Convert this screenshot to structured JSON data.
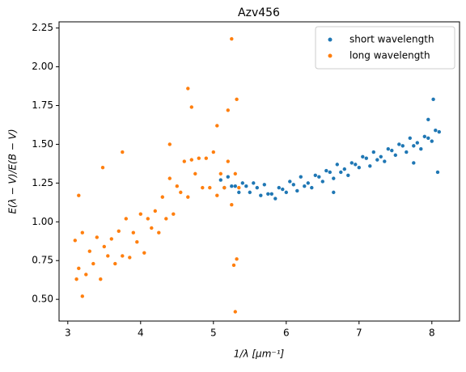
{
  "chart_data": {
    "type": "scatter",
    "title": "Azv456",
    "x_label": "1/λ [μm⁻¹]",
    "y_label": "E(λ − V)/E(B − V)",
    "xlim": [
      2.88,
      8.38
    ],
    "ylim": [
      0.36,
      2.29
    ],
    "xticks": [
      3,
      4,
      5,
      6,
      7,
      8
    ],
    "yticks": [
      {
        "value": 0.5,
        "label": "0.50"
      },
      {
        "value": 0.75,
        "label": "0.75"
      },
      {
        "value": 1.0,
        "label": "1.00"
      },
      {
        "value": 1.25,
        "label": "1.25"
      },
      {
        "value": 1.5,
        "label": "1.50"
      },
      {
        "value": 1.75,
        "label": "1.75"
      },
      {
        "value": 2.0,
        "label": "2.00"
      },
      {
        "value": 2.25,
        "label": "2.25"
      }
    ],
    "legend": "upper right",
    "series": [
      {
        "name": "short wavelength",
        "color": "#1f77b4",
        "x": [
          5.1,
          5.15,
          5.2,
          5.25,
          5.3,
          5.35,
          5.4,
          5.45,
          5.5,
          5.55,
          5.6,
          5.65,
          5.7,
          5.75,
          5.8,
          5.85,
          5.9,
          5.95,
          6.0,
          6.05,
          6.1,
          6.15,
          6.2,
          6.25,
          6.3,
          6.35,
          6.4,
          6.45,
          6.5,
          6.55,
          6.6,
          6.65,
          6.7,
          6.75,
          6.8,
          6.85,
          6.9,
          6.95,
          7.0,
          7.05,
          7.1,
          7.15,
          7.2,
          7.25,
          7.3,
          7.35,
          7.4,
          7.45,
          7.5,
          7.55,
          7.6,
          7.65,
          7.7,
          7.75,
          7.8,
          7.85,
          7.9,
          7.95,
          8.0,
          8.05,
          8.1,
          8.02,
          8.08,
          7.75,
          6.65,
          7.95
        ],
        "values": [
          1.27,
          1.22,
          1.29,
          1.23,
          1.23,
          1.19,
          1.25,
          1.23,
          1.19,
          1.25,
          1.22,
          1.17,
          1.24,
          1.18,
          1.18,
          1.15,
          1.22,
          1.21,
          1.19,
          1.26,
          1.24,
          1.2,
          1.29,
          1.23,
          1.25,
          1.22,
          1.3,
          1.29,
          1.26,
          1.33,
          1.32,
          1.28,
          1.37,
          1.32,
          1.34,
          1.3,
          1.38,
          1.37,
          1.35,
          1.42,
          1.41,
          1.36,
          1.45,
          1.4,
          1.42,
          1.39,
          1.47,
          1.46,
          1.43,
          1.5,
          1.49,
          1.45,
          1.54,
          1.49,
          1.51,
          1.47,
          1.55,
          1.54,
          1.52,
          1.59,
          1.58,
          1.79,
          1.32,
          1.38,
          1.19,
          1.66
        ]
      },
      {
        "name": "long wavelength",
        "color": "#ff7f0e",
        "x": [
          3.1,
          3.15,
          3.2,
          3.25,
          3.3,
          3.35,
          3.4,
          3.45,
          3.5,
          3.55,
          3.6,
          3.65,
          3.7,
          3.75,
          3.8,
          3.85,
          3.9,
          3.95,
          4.0,
          4.05,
          4.1,
          4.15,
          4.2,
          4.25,
          4.3,
          4.35,
          4.4,
          4.45,
          4.5,
          4.55,
          4.6,
          4.65,
          4.7,
          4.75,
          4.8,
          4.85,
          4.9,
          4.95,
          5.0,
          5.05,
          5.1,
          5.15,
          5.2,
          5.25,
          5.3,
          5.35,
          5.25,
          5.3,
          5.32,
          4.65,
          4.7,
          5.2,
          3.15,
          3.2,
          3.75,
          3.48,
          5.28,
          5.32,
          4.4,
          5.05,
          3.12
        ],
        "values": [
          0.88,
          0.7,
          0.93,
          0.66,
          0.81,
          0.73,
          0.9,
          0.63,
          0.84,
          0.78,
          0.89,
          0.73,
          0.94,
          0.78,
          1.02,
          0.77,
          0.93,
          0.87,
          1.05,
          0.8,
          1.02,
          0.96,
          1.07,
          0.93,
          1.16,
          1.02,
          1.28,
          1.05,
          1.23,
          1.19,
          1.39,
          1.16,
          1.4,
          1.31,
          1.41,
          1.22,
          1.41,
          1.22,
          1.45,
          1.17,
          1.31,
          1.22,
          1.39,
          1.11,
          1.31,
          1.22,
          2.18,
          0.42,
          1.79,
          1.86,
          1.74,
          1.72,
          1.17,
          0.52,
          1.45,
          1.35,
          0.72,
          0.76,
          1.5,
          1.62,
          0.63
        ]
      }
    ]
  }
}
